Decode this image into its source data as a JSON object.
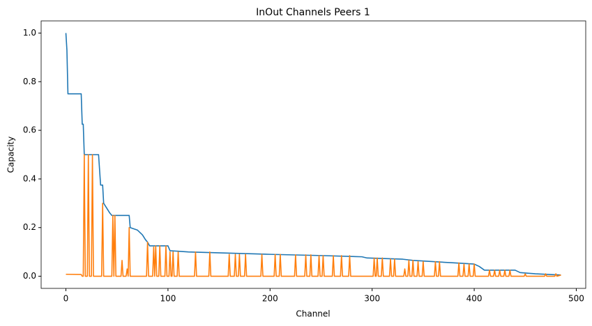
{
  "chart_data": {
    "type": "line",
    "title": "InOut Channels Peers 1",
    "x_label": "Channel",
    "y_label": "Capacity",
    "xlim": [
      -24.25,
      509.25
    ],
    "ylim": [
      -0.05,
      1.05
    ],
    "xticks": [
      0,
      100,
      200,
      300,
      400,
      500
    ],
    "yticks": [
      {
        "value": 0,
        "label": "0.0"
      },
      0.2,
      0.4,
      0.6,
      0.8,
      {
        "value": 1,
        "label": "1.0"
      }
    ],
    "grid": false,
    "series": [
      {
        "color": "#1f77b4",
        "x": [
          0,
          1,
          2,
          15,
          16,
          17,
          18,
          32,
          34,
          36,
          37,
          40,
          43,
          45,
          62,
          63,
          70,
          75,
          78,
          80,
          82,
          100,
          102,
          120,
          200,
          250,
          290,
          295,
          330,
          340,
          380,
          400,
          405,
          410,
          440,
          445,
          460,
          485
        ],
        "values": [
          1.0,
          0.93,
          0.75,
          0.75,
          0.625,
          0.625,
          0.5,
          0.5,
          0.375,
          0.375,
          0.3,
          0.28,
          0.26,
          0.25,
          0.25,
          0.2,
          0.19,
          0.17,
          0.15,
          0.14,
          0.125,
          0.125,
          0.105,
          0.1,
          0.09,
          0.085,
          0.08,
          0.075,
          0.07,
          0.065,
          0.055,
          0.05,
          0.04,
          0.025,
          0.025,
          0.015,
          0.01,
          0.005
        ]
      },
      {
        "color": "#ff7f0e",
        "x": [
          0,
          15,
          16,
          17,
          18,
          19,
          21,
          22,
          23,
          25,
          26,
          27,
          35,
          36,
          37,
          45,
          46,
          47,
          48,
          49,
          54,
          55,
          56,
          59,
          60,
          61,
          62,
          63,
          79,
          80,
          81,
          85,
          86,
          87,
          88,
          89,
          91,
          92,
          93,
          97,
          98,
          99,
          101,
          102,
          103,
          104,
          105,
          106,
          109,
          110,
          111,
          126,
          127,
          128,
          140,
          141,
          142,
          159,
          160,
          161,
          165,
          166,
          167,
          169,
          170,
          171,
          175,
          176,
          177,
          191,
          192,
          193,
          204,
          205,
          206,
          209,
          210,
          211,
          224,
          225,
          226,
          234,
          235,
          236,
          239,
          240,
          241,
          247,
          248,
          249,
          251,
          252,
          253,
          261,
          262,
          263,
          269,
          270,
          271,
          277,
          278,
          279,
          301,
          302,
          303,
          304,
          305,
          306,
          309,
          310,
          311,
          317,
          318,
          319,
          321,
          322,
          323,
          331,
          332,
          333,
          335,
          336,
          337,
          339,
          340,
          341,
          344,
          345,
          346,
          349,
          350,
          351,
          361,
          362,
          363,
          365,
          366,
          367,
          384,
          385,
          386,
          389,
          390,
          391,
          394,
          395,
          396,
          399,
          400,
          401,
          414,
          415,
          416,
          419,
          420,
          421,
          424,
          425,
          426,
          429,
          430,
          431,
          434,
          435,
          436,
          449,
          450,
          451,
          469,
          470,
          471,
          479,
          480,
          481,
          485
        ],
        "values": [
          0.008,
          0.007,
          0,
          0,
          0.5,
          0,
          0,
          0.5,
          0,
          0,
          0.5,
          0,
          0,
          0.3,
          0,
          0,
          0.25,
          0,
          0.25,
          0,
          0,
          0.065,
          0,
          0,
          0.03,
          0,
          0.2,
          0,
          0,
          0.14,
          0,
          0,
          0.12,
          0,
          0.125,
          0,
          0,
          0.125,
          0,
          0,
          0.125,
          0,
          0,
          0.1,
          0,
          0,
          0.1,
          0,
          0,
          0.1,
          0,
          0,
          0.1,
          0,
          0,
          0.1,
          0,
          0,
          0.09,
          0,
          0,
          0.09,
          0,
          0,
          0.09,
          0,
          0,
          0.09,
          0,
          0,
          0.09,
          0,
          0,
          0.09,
          0,
          0,
          0.09,
          0,
          0,
          0.088,
          0,
          0,
          0.088,
          0,
          0,
          0.088,
          0,
          0,
          0.085,
          0,
          0,
          0.085,
          0,
          0,
          0.085,
          0,
          0,
          0.085,
          0,
          0,
          0.085,
          0,
          0,
          0.075,
          0,
          0,
          0.075,
          0,
          0,
          0.075,
          0,
          0,
          0.07,
          0,
          0,
          0.07,
          0,
          0,
          0.03,
          0,
          0,
          0.065,
          0,
          0,
          0.065,
          0,
          0,
          0.06,
          0,
          0,
          0.06,
          0,
          0,
          0.06,
          0,
          0,
          0.06,
          0,
          0,
          0.055,
          0,
          0,
          0.05,
          0,
          0,
          0.05,
          0,
          0,
          0.05,
          0,
          0,
          0.025,
          0,
          0,
          0.025,
          0,
          0,
          0.025,
          0,
          0,
          0.025,
          0,
          0,
          0.025,
          0,
          0,
          0.01,
          0,
          0,
          0.01,
          0,
          0,
          0.01,
          0,
          0.005
        ]
      }
    ]
  }
}
